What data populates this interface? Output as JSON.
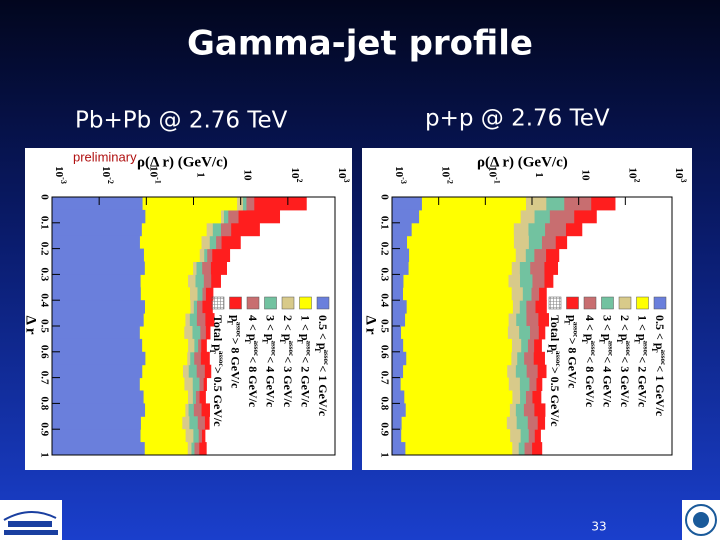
{
  "title": "Gamma-jet profile",
  "subtitles": [
    "Pb+Pb @ 2.76 TeV",
    "p+p @ 2.76 TeV"
  ],
  "note": "preliminary",
  "page_number": "33",
  "plots": [
    {
      "y_axis_label": "ρ(Δ r) (GeV/c)",
      "x_axis_label": "Δ r",
      "log_ticks": [
        {
          "base": "10",
          "exp": "-3"
        },
        {
          "base": "10",
          "exp": "-2"
        },
        {
          "base": "10",
          "exp": "-1"
        },
        {
          "base": "1"
        },
        {
          "base": "10"
        },
        {
          "base": "10",
          "exp": "2"
        },
        {
          "base": "10",
          "exp": "3"
        }
      ],
      "r_ticks": [
        "0",
        "0.1",
        "0.2",
        "0.3",
        "0.4",
        "0.5",
        "0.6",
        "0.7",
        "0.8",
        "0.9",
        "1"
      ],
      "legend": [
        {
          "lead": "0.5 < p",
          "sub": "T",
          "sup": "assoc",
          "tail": " < 1 GeV/c"
        },
        {
          "lead": "1 < p",
          "sub": "T",
          "sup": "assoc",
          "tail": " < 2 GeV/c"
        },
        {
          "lead": "2 < p",
          "sub": "T",
          "sup": "assoc",
          "tail": " < 3 GeV/c"
        },
        {
          "lead": "3 < p",
          "sub": "T",
          "sup": "assoc",
          "tail": " < 4 GeV/c"
        },
        {
          "lead": "4 < p",
          "sub": "T",
          "sup": "assoc",
          "tail": " < 8 GeV/c"
        },
        {
          "lead": "p",
          "sub": "T",
          "sup": "assoc",
          "tail": " > 8 GeV/c"
        },
        {
          "lead": "Total p",
          "sub": "T",
          "sup": "assoc",
          "tail": " > 0.5 GeV/c"
        }
      ]
    },
    {
      "y_axis_label": "ρ(Δ r) (GeV/c)",
      "x_axis_label": "Δ r",
      "log_ticks": [
        {
          "base": "10",
          "exp": "-3"
        },
        {
          "base": "10",
          "exp": "-2"
        },
        {
          "base": "10",
          "exp": "-1"
        },
        {
          "base": "1"
        },
        {
          "base": "10"
        },
        {
          "base": "10",
          "exp": "2"
        },
        {
          "base": "10",
          "exp": "3"
        }
      ],
      "r_ticks": [
        "0",
        "0.1",
        "0.2",
        "0.3",
        "0.4",
        "0.5",
        "0.6",
        "0.7",
        "0.8",
        "0.9",
        "1"
      ],
      "legend": [
        {
          "lead": "0.5 < p",
          "sub": "T",
          "sup": "assoc",
          "tail": " < 1 GeV/c"
        },
        {
          "lead": "1 < p",
          "sub": "T",
          "sup": "assoc",
          "tail": " < 2 GeV/c"
        },
        {
          "lead": "2 < p",
          "sub": "T",
          "sup": "assoc",
          "tail": " < 3 GeV/c"
        },
        {
          "lead": "3 < p",
          "sub": "T",
          "sup": "assoc",
          "tail": " < 4 GeV/c"
        },
        {
          "lead": "4 < p",
          "sub": "T",
          "sup": "assoc",
          "tail": " < 8 GeV/c"
        },
        {
          "lead": "p",
          "sub": "T",
          "sup": "assoc",
          "tail": " > 8 GeV/c"
        },
        {
          "lead": "Total p",
          "sub": "T",
          "sup": "assoc",
          "tail": " > 0.5 GeV/c"
        }
      ]
    }
  ]
}
